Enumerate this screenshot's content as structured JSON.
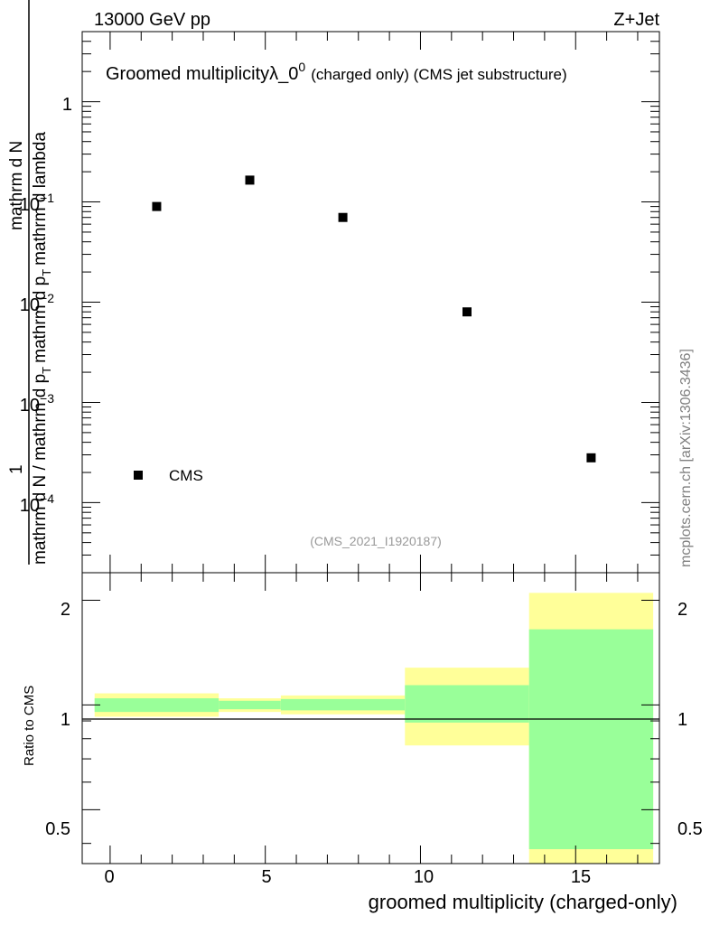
{
  "header": {
    "energy_label": "13000 GeV pp",
    "process_label": "Z+Jet"
  },
  "top_panel": {
    "title_main": "Groomed multiplicity",
    "title_symbol": "λ_0",
    "title_superscript": "0",
    "title_rest": "(charged only) (CMS jet substructure)",
    "ylabel_numerator_1": "1",
    "ylabel_numerator_2": "mathrm d",
    "ylabel_numerator_3": "N",
    "ylabel_denominator": "mathrm d N / mathrm d p",
    "ylabel_denominator_sub": "T",
    "ylabel_denominator_rest": "mathrm d p",
    "ylabel_denominator_sub2": "T",
    "ylabel_denominator_rest2": "mathrm d lambda",
    "analysis_id": "(CMS_2021_I1920187)",
    "side_label": "mcplots.cern.ch [arXiv:1306.3436]",
    "legend_label": "CMS",
    "ytick_labels": [
      "1",
      "10",
      "10",
      "10",
      "10"
    ],
    "ytick_exponents": [
      "",
      "−1",
      "−2",
      "−3",
      "−4"
    ]
  },
  "bottom_panel": {
    "ylabel": "Ratio to CMS",
    "ytick_labels": [
      "0.5",
      "1",
      "2"
    ],
    "xlabel": "groomed multiplicity (charged-only)",
    "xtick_labels": [
      "0",
      "5",
      "10",
      "15"
    ]
  },
  "chart_data": [
    {
      "type": "scatter",
      "panel": "main",
      "x_scale": "linear",
      "y_scale": "log",
      "xlim": [
        -0.9,
        17.7
      ],
      "ylim": [
        2e-05,
        5
      ],
      "series": [
        {
          "name": "CMS",
          "marker": "square",
          "color": "#000000",
          "x": [
            1.5,
            4.5,
            7.5,
            11.5,
            15.5
          ],
          "y": [
            0.09,
            0.165,
            0.07,
            0.008,
            0.00028
          ]
        }
      ]
    },
    {
      "type": "area",
      "panel": "ratio",
      "x_scale": "linear",
      "y_scale": "log",
      "xlim": [
        -0.9,
        17.7
      ],
      "ylim": [
        0.35,
        2.4
      ],
      "reference_line": 1.0,
      "bins": [
        {
          "lo": -0.5,
          "hi": 3.5,
          "yellow": [
            0.925,
            1.08
          ],
          "green": [
            0.955,
            1.045
          ]
        },
        {
          "lo": 3.5,
          "hi": 5.5,
          "yellow": [
            0.955,
            1.045
          ],
          "green": [
            0.972,
            1.028
          ]
        },
        {
          "lo": 5.5,
          "hi": 9.5,
          "yellow": [
            0.94,
            1.065
          ],
          "green": [
            0.965,
            1.04
          ]
        },
        {
          "lo": 9.5,
          "hi": 13.5,
          "yellow": [
            0.765,
            1.28
          ],
          "green": [
            0.89,
            1.14
          ]
        },
        {
          "lo": 13.5,
          "hi": 17.5,
          "yellow": [
            0.35,
            2.1
          ],
          "green": [
            0.385,
            1.65
          ]
        }
      ],
      "colors": {
        "yellow": "#ffff99",
        "green": "#99ff99"
      }
    }
  ]
}
